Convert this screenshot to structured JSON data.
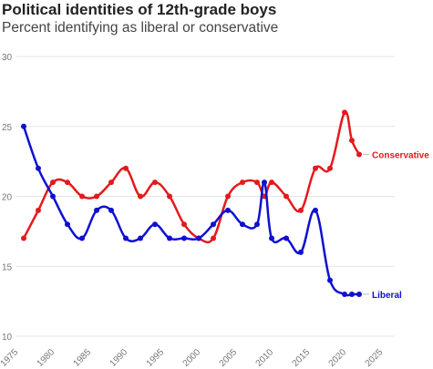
{
  "chart_data": {
    "type": "line",
    "title": "Political identities of 12th-grade boys",
    "subtitle": "Percent identifying as liberal or conservative",
    "xlabel": "",
    "ylabel": "",
    "xlim": [
      1975,
      2025
    ],
    "ylim": [
      10,
      30
    ],
    "x_ticks": [
      1975,
      1980,
      1985,
      1990,
      1995,
      2000,
      2005,
      2010,
      2015,
      2020,
      2025
    ],
    "y_ticks": [
      10,
      15,
      20,
      25,
      30
    ],
    "grid": true,
    "legend": "direct labels at line ends",
    "series": [
      {
        "name": "Conservative",
        "color": "#e31a1c",
        "x": [
          1976,
          1978,
          1980,
          1982,
          1984,
          1986,
          1988,
          1990,
          1992,
          1994,
          1996,
          1998,
          2000,
          2002,
          2004,
          2006,
          2008,
          2009,
          2010,
          2012,
          2014,
          2016,
          2018,
          2020,
          2021,
          2022
        ],
        "y": [
          17,
          19,
          21,
          21,
          20,
          20,
          21,
          22,
          20,
          21,
          20,
          18,
          17,
          17,
          20,
          21,
          21,
          20,
          21,
          20,
          19,
          22,
          22,
          26,
          24,
          23
        ]
      },
      {
        "name": "Liberal",
        "color": "#1010d0",
        "x": [
          1976,
          1978,
          1980,
          1982,
          1984,
          1986,
          1988,
          1990,
          1992,
          1994,
          1996,
          1998,
          2000,
          2002,
          2004,
          2006,
          2008,
          2009,
          2010,
          2012,
          2014,
          2016,
          2018,
          2020,
          2021,
          2022
        ],
        "y": [
          25,
          22,
          20,
          18,
          17,
          19,
          19,
          17,
          17,
          18,
          17,
          17,
          17,
          18,
          19,
          18,
          18,
          21,
          17,
          17,
          16,
          19,
          14,
          13,
          13,
          13
        ]
      }
    ]
  }
}
